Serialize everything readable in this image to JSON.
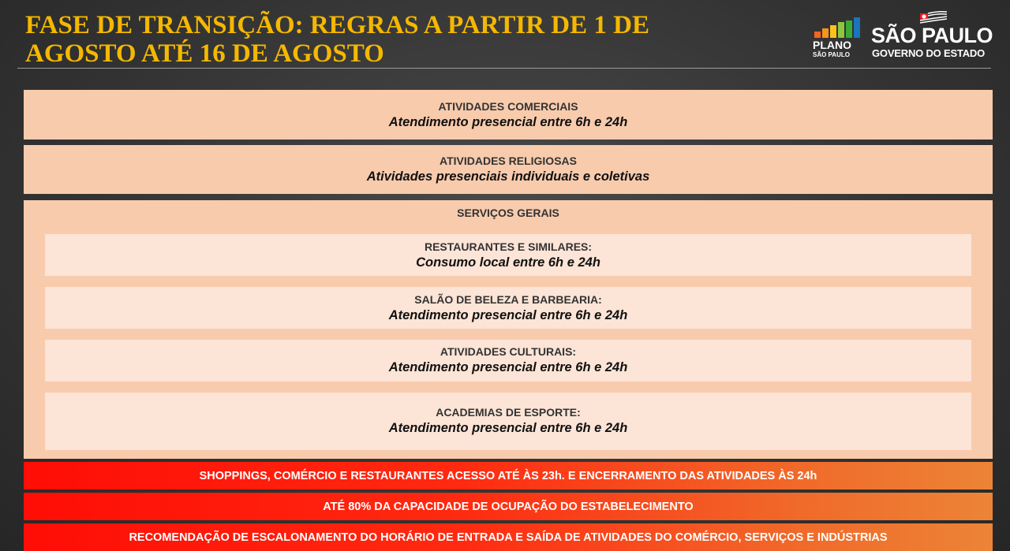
{
  "header": {
    "title_line1": "FASE DE TRANSIÇÃO: REGRAS A PARTIR DE 1 DE",
    "title_line2": "AGOSTO ATÉ 16 DE AGOSTO"
  },
  "logos": {
    "plano": "PLANO",
    "plano_sub": "SÃO PAULO",
    "sp": "SÃO PAULO",
    "sp_sub": "GOVERNO DO ESTADO",
    "plano_colors": [
      "#f26522",
      "#f7941d",
      "#f9c31b",
      "#8dc63f",
      "#3aaa35",
      "#1b75bc"
    ]
  },
  "sections": [
    {
      "heading": "ATIVIDADES COMERCIAIS",
      "detail": "Atendimento presencial entre 6h e 24h"
    },
    {
      "heading": "ATIVIDADES RELIGIOSAS",
      "detail": "Atividades presenciais individuais e coletivas"
    }
  ],
  "services": {
    "heading": "SERVIÇOS GERAIS",
    "items": [
      {
        "heading": "RESTAURANTES E SIMILARES:",
        "detail": "Consumo local entre 6h e 24h"
      },
      {
        "heading": "SALÃO DE BELEZA E BARBEARIA:",
        "detail": "Atendimento presencial entre 6h e 24h"
      },
      {
        "heading": "ATIVIDADES CULTURAIS:",
        "detail": "Atendimento presencial entre 6h e 24h"
      },
      {
        "heading": "ACADEMIAS DE ESPORTE:",
        "detail": "Atendimento presencial entre 6h e 24h"
      }
    ]
  },
  "rules": [
    "SHOPPINGS, COMÉRCIO E RESTAURANTES ACESSO ATÉ ÀS 23h. E ENCERRAMENTO DAS ATIVIDADES ÀS 24h",
    "ATÉ 80% DA CAPACIDADE DE OCUPAÇÃO DO ESTABELECIMENTO",
    "RECOMENDAÇÃO DE ESCALONAMENTO DO HORÁRIO DE ENTRADA E SAÍDA DE ATIVIDADES DO COMÉRCIO, SERVIÇOS E INDÚSTRIAS"
  ],
  "colors": {
    "title": "#f5b800",
    "panel": "#f8cbad",
    "inner": "#fce4d6",
    "alert": "#ff0d06"
  }
}
